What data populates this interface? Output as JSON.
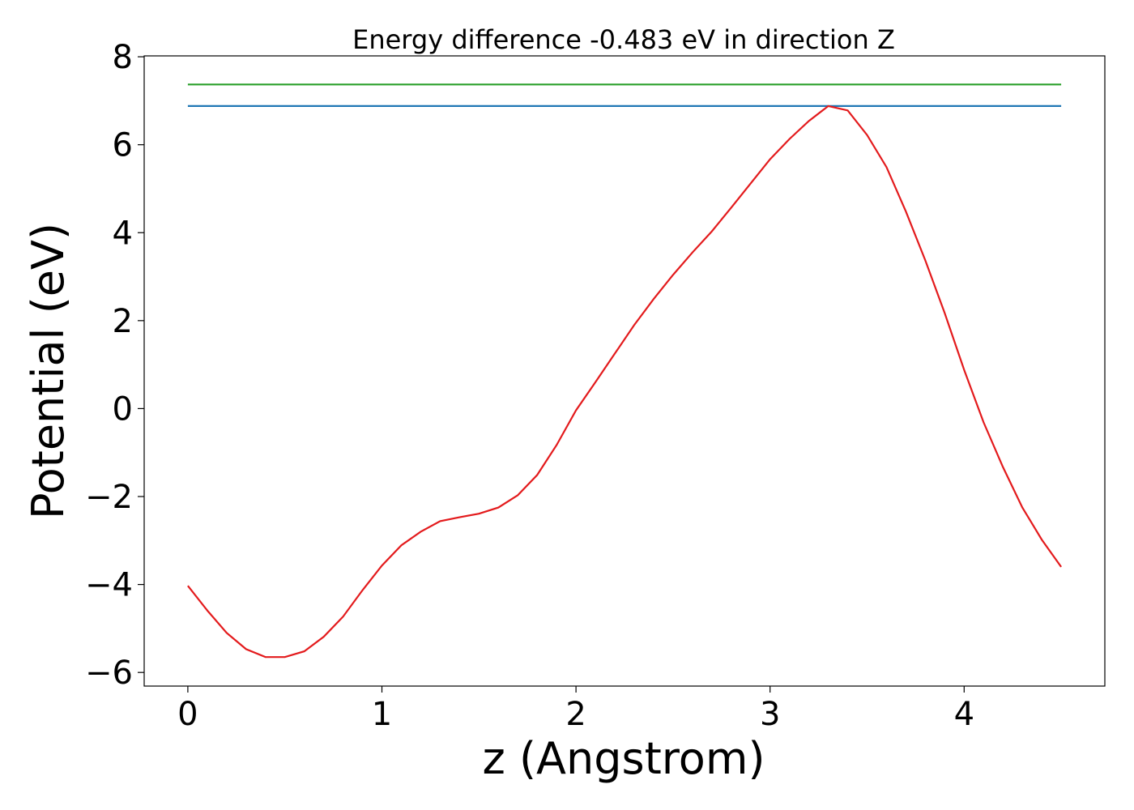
{
  "chart_data": {
    "type": "line",
    "title": "Energy difference -0.483 eV in direction Z",
    "xlabel": "z (Angstrom)",
    "ylabel": "Potential (eV)",
    "xlim": [
      -0.225,
      4.725
    ],
    "ylim": [
      -6.31,
      8.02
    ],
    "xticks": [
      0,
      1,
      2,
      3,
      4
    ],
    "yticks": [
      -6,
      -4,
      -2,
      0,
      2,
      4,
      6,
      8
    ],
    "series": [
      {
        "color": "#2ca02c",
        "x": [
          0,
          4.5
        ],
        "values": [
          7.37,
          7.37
        ]
      },
      {
        "color": "#1f77b4",
        "x": [
          0,
          4.5
        ],
        "values": [
          6.88,
          6.88
        ]
      },
      {
        "color": "#e31a1c",
        "x": [
          0,
          0.1,
          0.2,
          0.3,
          0.4,
          0.5,
          0.6,
          0.7,
          0.8,
          0.9,
          1.0,
          1.1,
          1.2,
          1.3,
          1.4,
          1.5,
          1.6,
          1.7,
          1.8,
          1.9,
          2.0,
          2.1,
          2.2,
          2.3,
          2.4,
          2.5,
          2.6,
          2.7,
          2.8,
          2.9,
          3.0,
          3.1,
          3.2,
          3.3,
          3.4,
          3.5,
          3.6,
          3.7,
          3.8,
          3.9,
          4.0,
          4.1,
          4.2,
          4.3,
          4.4,
          4.5
        ],
        "values": [
          -4.03,
          -4.59,
          -5.1,
          -5.47,
          -5.65,
          -5.65,
          -5.52,
          -5.19,
          -4.73,
          -4.13,
          -3.57,
          -3.11,
          -2.8,
          -2.56,
          -2.47,
          -2.39,
          -2.25,
          -1.97,
          -1.51,
          -0.83,
          -0.04,
          0.6,
          1.25,
          1.9,
          2.49,
          3.04,
          3.55,
          4.03,
          4.57,
          5.12,
          5.67,
          6.13,
          6.54,
          6.88,
          6.78,
          6.22,
          5.49,
          4.48,
          3.37,
          2.17,
          0.88,
          -0.31,
          -1.33,
          -2.25,
          -2.98,
          -3.6
        ]
      }
    ]
  }
}
